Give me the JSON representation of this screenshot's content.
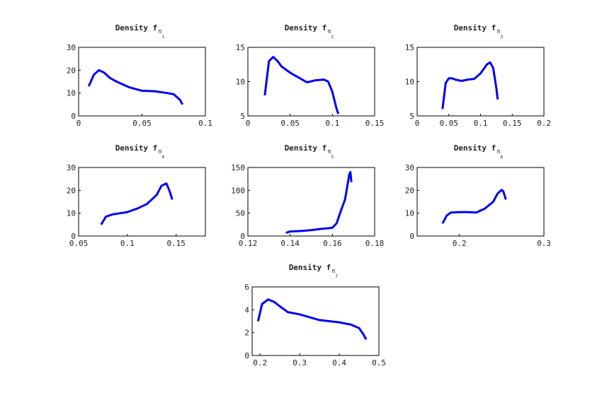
{
  "chart_data": [
    {
      "type": "line",
      "title": "Density f",
      "title_sub": "π",
      "title_subsub": "1",
      "xlim": [
        0,
        0.1
      ],
      "xticks": [
        0,
        0.05,
        0.1
      ],
      "ylim": [
        0,
        30
      ],
      "yticks": [
        0,
        10,
        20,
        30
      ],
      "series": [
        {
          "color": "#0000ee",
          "x": [
            0.008,
            0.012,
            0.016,
            0.02,
            0.025,
            0.03,
            0.04,
            0.05,
            0.06,
            0.07,
            0.075,
            0.08,
            0.082
          ],
          "values": [
            13,
            18,
            20,
            19,
            16.5,
            15,
            12.5,
            11,
            10.8,
            10,
            9.5,
            7,
            5
          ]
        }
      ]
    },
    {
      "type": "line",
      "title": "Density f",
      "title_sub": "π",
      "title_subsub": "2",
      "xlim": [
        0,
        0.15
      ],
      "xticks": [
        0,
        0.05,
        0.1,
        0.15
      ],
      "ylim": [
        5,
        15
      ],
      "yticks": [
        5,
        10,
        15
      ],
      "series": [
        {
          "color": "#0000ee",
          "x": [
            0.02,
            0.025,
            0.03,
            0.035,
            0.04,
            0.05,
            0.06,
            0.07,
            0.08,
            0.09,
            0.095,
            0.1,
            0.105,
            0.107
          ],
          "values": [
            8,
            13,
            13.6,
            13,
            12.2,
            11.3,
            10.6,
            9.9,
            10.2,
            10.3,
            10,
            8.5,
            6,
            5.3
          ]
        }
      ]
    },
    {
      "type": "line",
      "title": "Density f",
      "title_sub": "π",
      "title_subsub": "3",
      "xlim": [
        0,
        0.2
      ],
      "xticks": [
        0,
        0.05,
        0.1,
        0.15,
        0.2
      ],
      "ylim": [
        5,
        15
      ],
      "yticks": [
        5,
        10,
        15
      ],
      "series": [
        {
          "color": "#0000ee",
          "x": [
            0.04,
            0.045,
            0.05,
            0.055,
            0.06,
            0.07,
            0.08,
            0.09,
            0.1,
            0.11,
            0.115,
            0.12,
            0.125,
            0.127
          ],
          "values": [
            6,
            9.8,
            10.5,
            10.5,
            10.3,
            10.1,
            10.3,
            10.4,
            11.2,
            12.5,
            12.8,
            12,
            9,
            7.4
          ]
        }
      ]
    },
    {
      "type": "line",
      "title": "Density f",
      "title_sub": "π",
      "title_subsub": "4",
      "xlim": [
        0.05,
        0.18
      ],
      "xticks": [
        0.05,
        0.1,
        0.15
      ],
      "ylim": [
        0,
        30
      ],
      "yticks": [
        0,
        10,
        20,
        30
      ],
      "series": [
        {
          "color": "#0000ee",
          "x": [
            0.073,
            0.078,
            0.085,
            0.1,
            0.11,
            0.12,
            0.13,
            0.135,
            0.14,
            0.143,
            0.146
          ],
          "values": [
            5,
            8.5,
            9.5,
            10.5,
            12,
            14,
            18,
            22,
            23,
            20,
            16
          ]
        }
      ]
    },
    {
      "type": "line",
      "title": "Density f",
      "title_sub": "π",
      "title_subsub": "5",
      "xlim": [
        0.12,
        0.18
      ],
      "xticks": [
        0.12,
        0.14,
        0.16,
        0.18
      ],
      "ylim": [
        0,
        150
      ],
      "yticks": [
        0,
        50,
        100,
        150
      ],
      "series": [
        {
          "color": "#0000ee",
          "x": [
            0.138,
            0.14,
            0.145,
            0.15,
            0.155,
            0.16,
            0.162,
            0.164,
            0.166,
            0.168,
            0.1685,
            0.169
          ],
          "values": [
            7,
            10,
            11,
            13,
            16,
            18,
            28,
            55,
            80,
            135,
            140,
            118
          ]
        }
      ]
    },
    {
      "type": "line",
      "title": "Density f",
      "title_sub": "π",
      "title_subsub": "6",
      "xlim": [
        0.15,
        0.3
      ],
      "xticks": [
        0.2,
        0.3
      ],
      "ylim": [
        0,
        30
      ],
      "yticks": [
        0,
        10,
        20,
        30
      ],
      "series": [
        {
          "color": "#0000ee",
          "x": [
            0.18,
            0.185,
            0.19,
            0.2,
            0.21,
            0.22,
            0.23,
            0.24,
            0.245,
            0.25,
            0.252,
            0.255
          ],
          "values": [
            5.5,
            9,
            10.3,
            10.5,
            10.5,
            10.3,
            12,
            15,
            18.5,
            20.2,
            19.5,
            16
          ]
        }
      ]
    },
    {
      "type": "line",
      "title": "Density f",
      "title_sub": "π",
      "title_subsub": "7",
      "xlim": [
        0.18,
        0.5
      ],
      "xticks": [
        0.2,
        0.3,
        0.4,
        0.5
      ],
      "ylim": [
        0,
        6
      ],
      "yticks": [
        0,
        2,
        4,
        6
      ],
      "series": [
        {
          "color": "#0000ee",
          "x": [
            0.195,
            0.205,
            0.22,
            0.235,
            0.25,
            0.27,
            0.3,
            0.35,
            0.4,
            0.43,
            0.45,
            0.46,
            0.468
          ],
          "values": [
            3,
            4.5,
            4.9,
            4.7,
            4.3,
            3.8,
            3.6,
            3.1,
            2.9,
            2.7,
            2.4,
            1.9,
            1.4
          ]
        }
      ]
    }
  ]
}
